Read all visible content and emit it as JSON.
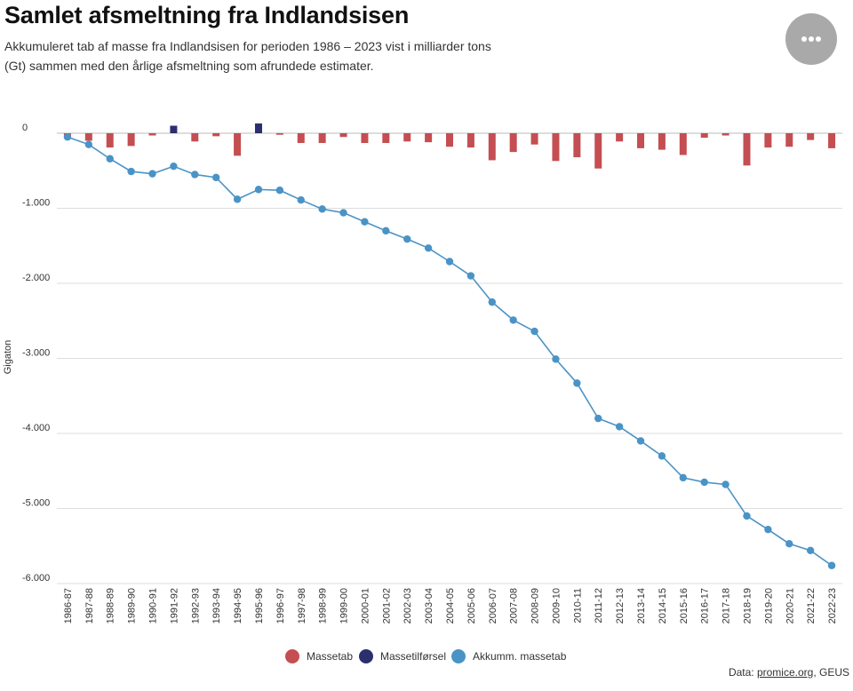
{
  "header": {
    "title": "Samlet afsmeltning fra Indlandsisen",
    "subtitle": "Akkumuleret tab af masse fra Indlandsisen for perioden 1986 – 2023 vist i milliarder tons (Gt) sammen med den årlige afsmeltning som afrundede estimater."
  },
  "menu": {
    "icon": "ellipsis-icon"
  },
  "colors": {
    "loss": "#c44e52",
    "gain": "#2b2f6e",
    "cumulative": "#4a93c6",
    "grid": "#dddddd"
  },
  "legend": [
    {
      "label": "Massetab",
      "color": "#c44e52"
    },
    {
      "label": "Massetilførsel",
      "color": "#2b2f6e"
    },
    {
      "label": "Akkumm. massetab",
      "color": "#4a93c6"
    }
  ],
  "source": {
    "prefix": "Data: ",
    "link": "promice.org",
    "suffix": ", GEUS"
  },
  "chart_data": {
    "type": "bar",
    "ylabel": "Gigaton",
    "ylim": [
      -6000,
      0
    ],
    "yticks": [
      0,
      -1000,
      -2000,
      -3000,
      -4000,
      -5000,
      -6000
    ],
    "ytick_labels": [
      "0",
      "-1.000",
      "-2.000",
      "-3.000",
      "-4.000",
      "-5.000",
      "-6.000"
    ],
    "grid": true,
    "legend_position": "bottom",
    "categories": [
      "1986-87",
      "1987-88",
      "1988-89",
      "1989-90",
      "1990-91",
      "1991-92",
      "1992-93",
      "1993-94",
      "1994-95",
      "1995-96",
      "1996-97",
      "1997-98",
      "1998-99",
      "1999-00",
      "2000-01",
      "2001-02",
      "2002-03",
      "2003-04",
      "2004-05",
      "2005-06",
      "2006-07",
      "2007-08",
      "2008-09",
      "2009-10",
      "2010-11",
      "2011-12",
      "2012-13",
      "2013-14",
      "2014-15",
      "2015-16",
      "2016-17",
      "2017-18",
      "2018-19",
      "2019-20",
      "2020-21",
      "2021-22",
      "2022-23"
    ],
    "series": [
      {
        "name": "Massetab",
        "type": "bar",
        "values": [
          -50,
          -100,
          -190,
          -170,
          -30,
          null,
          -110,
          -40,
          -300,
          null,
          -20,
          -130,
          -130,
          -50,
          -130,
          -130,
          -110,
          -120,
          -180,
          -190,
          -360,
          -250,
          -150,
          -370,
          -320,
          -470,
          -110,
          -200,
          -220,
          -290,
          -60,
          -30,
          -430,
          -190,
          -180,
          -90,
          -200
        ]
      },
      {
        "name": "Massetilførsel",
        "type": "bar",
        "values": [
          null,
          null,
          null,
          null,
          null,
          100,
          null,
          null,
          null,
          130,
          null,
          null,
          null,
          null,
          null,
          null,
          null,
          null,
          null,
          null,
          null,
          null,
          null,
          null,
          null,
          null,
          null,
          null,
          null,
          null,
          null,
          null,
          null,
          null,
          null,
          null,
          null
        ]
      },
      {
        "name": "Akkumm. massetab",
        "type": "line",
        "values": [
          -50,
          -150,
          -340,
          -510,
          -540,
          -440,
          -550,
          -590,
          -880,
          -750,
          -760,
          -890,
          -1010,
          -1060,
          -1180,
          -1300,
          -1410,
          -1530,
          -1710,
          -1900,
          -2250,
          -2490,
          -2640,
          -3010,
          -3330,
          -3800,
          -3910,
          -4100,
          -4300,
          -4590,
          -4650,
          -4680,
          -5100,
          -5280,
          -5470,
          -5560,
          -5760
        ]
      }
    ]
  }
}
